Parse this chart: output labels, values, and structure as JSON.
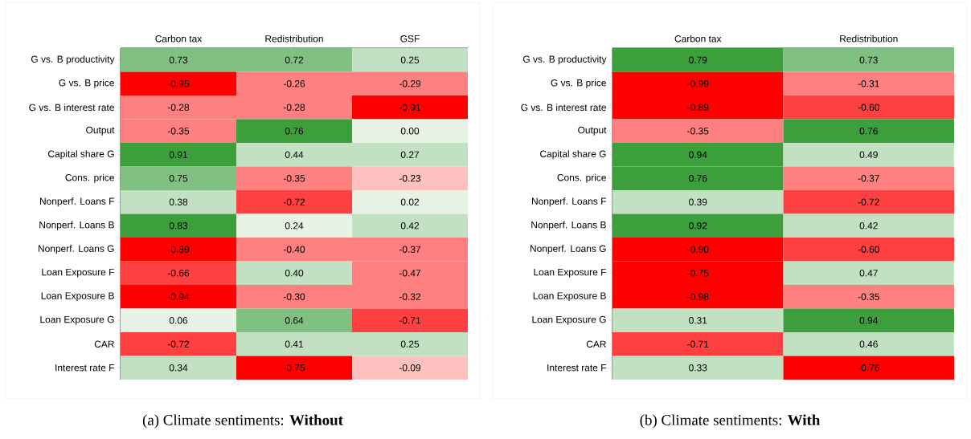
{
  "chart_data": [
    {
      "type": "heatmap",
      "title": "(a) Climate sentiments: **Without**",
      "categories": [
        "Carbon tax",
        "Redistribution",
        "GSF"
      ],
      "y_categories": [
        "G vs. B productivity",
        "G vs. B price",
        "G vs. B interest rate",
        "Output",
        "Capital share G",
        "Cons. price",
        "Nonperf. Loans F",
        "Nonperf. Loans B",
        "Nonperf. Loans G",
        "Loan Exposure F",
        "Loan Exposure B",
        "Loan Exposure G",
        "CAR",
        "Interest rate F"
      ],
      "cells": [
        [
          0.73,
          0.72,
          0.25
        ],
        [
          -0.95,
          -0.26,
          -0.29
        ],
        [
          -0.28,
          -0.28,
          -0.91
        ],
        [
          -0.35,
          0.76,
          0.0
        ],
        [
          0.91,
          0.44,
          0.27
        ],
        [
          0.75,
          -0.35,
          -0.23
        ],
        [
          0.38,
          -0.72,
          0.02
        ],
        [
          0.83,
          0.24,
          0.42
        ],
        [
          -0.89,
          -0.4,
          -0.37
        ],
        [
          -0.66,
          0.4,
          -0.47
        ],
        [
          -0.94,
          -0.3,
          -0.32
        ],
        [
          0.06,
          0.64,
          -0.71
        ],
        [
          -0.72,
          0.41,
          0.25
        ],
        [
          0.34,
          -0.75,
          -0.09
        ]
      ],
      "cell_labels": [
        [
          "0.73",
          "0.72",
          "0.25"
        ],
        [
          "-0.95",
          "-0.26",
          "-0.29"
        ],
        [
          "-0.28",
          "-0.28",
          "-0.91"
        ],
        [
          "-0.35",
          "0.76",
          "0.00"
        ],
        [
          "0.91",
          "0.44",
          "0.27"
        ],
        [
          "0.75",
          "-0.35",
          "-0.23"
        ],
        [
          "0.38",
          "-0.72",
          "0.02"
        ],
        [
          "0.83",
          "0.24",
          "0.42"
        ],
        [
          "-0.89",
          "-0.40",
          "-0.37"
        ],
        [
          "-0.66",
          "0.40",
          "-0.47"
        ],
        [
          "-0.94",
          "-0.30",
          "-0.32"
        ],
        [
          "0.06",
          "0.64",
          "-0.71"
        ],
        [
          "-0.72",
          "0.41",
          "0.25"
        ],
        [
          "0.34",
          "-0.75",
          "-0.09"
        ]
      ]
    },
    {
      "type": "heatmap",
      "title": "(b) Climate sentiments: **With**",
      "categories": [
        "Carbon tax",
        "Redistribution"
      ],
      "y_categories": [
        "G vs. B productivity",
        "G vs. B price",
        "G vs. B interest rate",
        "Output",
        "Capital share G",
        "Cons. price",
        "Nonperf. Loans F",
        "Nonperf. Loans B",
        "Nonperf. Loans G",
        "Loan Exposure F",
        "Loan Exposure B",
        "Loan Exposure G",
        "CAR",
        "Interest rate F"
      ],
      "cells": [
        [
          0.79,
          0.73
        ],
        [
          -0.99,
          -0.31
        ],
        [
          -0.89,
          -0.6
        ],
        [
          -0.35,
          0.76
        ],
        [
          0.94,
          0.49
        ],
        [
          0.76,
          -0.37
        ],
        [
          0.39,
          -0.72
        ],
        [
          0.92,
          0.42
        ],
        [
          -0.9,
          -0.6
        ],
        [
          -0.75,
          0.47
        ],
        [
          -0.98,
          -0.35
        ],
        [
          0.31,
          0.94
        ],
        [
          -0.71,
          0.46
        ],
        [
          0.33,
          -0.76
        ]
      ],
      "cell_labels": [
        [
          "0.79",
          "0.73"
        ],
        [
          "-0.99",
          "-0.31"
        ],
        [
          "-0.89",
          "-0.60"
        ],
        [
          "-0.35",
          "0.76"
        ],
        [
          "0.94",
          "0.49"
        ],
        [
          "0.76",
          "-0.37"
        ],
        [
          "0.39",
          "-0.72"
        ],
        [
          "0.92",
          "0.42"
        ],
        [
          "-0.90",
          "-0.60"
        ],
        [
          "-0.75",
          "0.47"
        ],
        [
          "-0.98",
          "-0.35"
        ],
        [
          "0.31",
          "0.94"
        ],
        [
          "-0.71",
          "0.46"
        ],
        [
          "0.33",
          "-0.76"
        ]
      ]
    }
  ]
}
